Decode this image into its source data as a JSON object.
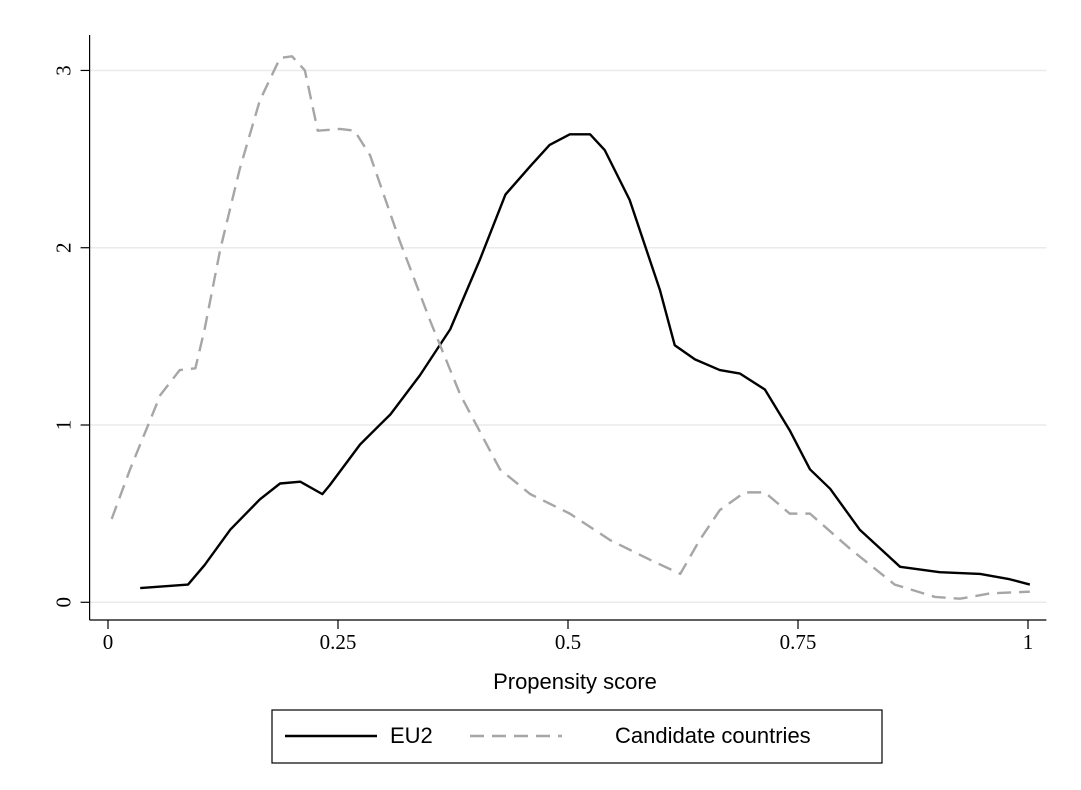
{
  "chart_data": {
    "type": "line",
    "x_label": "Propensity score",
    "xlim": [
      -0.02,
      1.02
    ],
    "xticks": [
      0,
      0.25,
      0.5,
      0.75,
      1
    ],
    "ylim": [
      -0.1,
      3.2
    ],
    "yticks": [
      0,
      1,
      2,
      3
    ],
    "grid": true,
    "legend": "bottom",
    "series": [
      {
        "name": "EU2",
        "color": "#000000",
        "dash": "solid",
        "x": [
          0.035,
          0.087,
          0.105,
          0.133,
          0.165,
          0.187,
          0.209,
          0.233,
          0.241,
          0.274,
          0.307,
          0.339,
          0.372,
          0.404,
          0.432,
          0.459,
          0.48,
          0.502,
          0.524,
          0.54,
          0.567,
          0.6,
          0.616,
          0.638,
          0.665,
          0.687,
          0.714,
          0.741,
          0.763,
          0.785,
          0.817,
          0.861,
          0.904,
          0.948,
          0.98,
          1.002
        ],
        "values": [
          0.08,
          0.1,
          0.21,
          0.41,
          0.58,
          0.67,
          0.68,
          0.61,
          0.66,
          0.89,
          1.06,
          1.28,
          1.54,
          1.93,
          2.3,
          2.46,
          2.58,
          2.64,
          2.64,
          2.55,
          2.27,
          1.76,
          1.45,
          1.37,
          1.31,
          1.29,
          1.2,
          0.97,
          0.75,
          0.64,
          0.41,
          0.2,
          0.17,
          0.16,
          0.13,
          0.1
        ]
      },
      {
        "name": "Candidate countries",
        "color": "#a6a6a6",
        "dash": "dashed",
        "x": [
          0.004,
          0.024,
          0.057,
          0.078,
          0.095,
          0.105,
          0.122,
          0.143,
          0.165,
          0.187,
          0.2,
          0.214,
          0.228,
          0.252,
          0.268,
          0.285,
          0.317,
          0.35,
          0.383,
          0.426,
          0.459,
          0.502,
          0.546,
          0.589,
          0.622,
          0.643,
          0.665,
          0.692,
          0.714,
          0.741,
          0.763,
          0.807,
          0.855,
          0.899,
          0.926,
          0.959,
          1.002
        ],
        "values": [
          0.47,
          0.75,
          1.17,
          1.31,
          1.32,
          1.54,
          1.99,
          2.44,
          2.83,
          3.07,
          3.08,
          3.0,
          2.66,
          2.67,
          2.66,
          2.52,
          2.04,
          1.59,
          1.17,
          0.75,
          0.61,
          0.5,
          0.35,
          0.24,
          0.16,
          0.35,
          0.52,
          0.62,
          0.62,
          0.5,
          0.5,
          0.3,
          0.1,
          0.03,
          0.02,
          0.05,
          0.06
        ]
      }
    ]
  }
}
